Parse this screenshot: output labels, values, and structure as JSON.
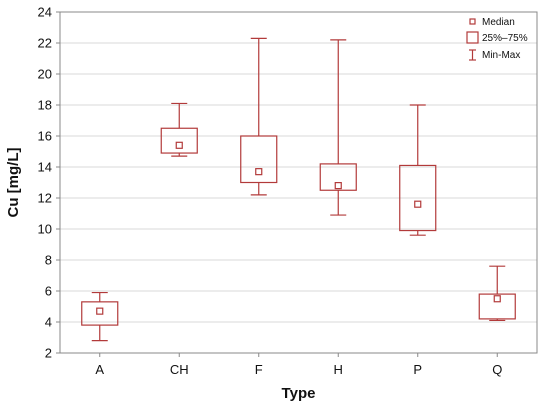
{
  "chart_data": {
    "type": "boxplot",
    "xlabel": "Type",
    "ylabel": "Cu [mg/L]",
    "ylim": [
      2,
      24
    ],
    "yticks": [
      2,
      4,
      6,
      8,
      10,
      12,
      14,
      16,
      18,
      20,
      22,
      24
    ],
    "grid": true,
    "legend_position": "top-right",
    "legend": {
      "median": "Median",
      "box": "25%–75%",
      "whisker": "Min-Max"
    },
    "colors": {
      "box": "#b23a3a",
      "grid": "#d9d9d9",
      "axis": "#888888"
    },
    "categories": [
      "A",
      "CH",
      "F",
      "H",
      "P",
      "Q"
    ],
    "boxes": [
      {
        "category": "A",
        "min": 2.8,
        "q1": 3.8,
        "median": 4.7,
        "q3": 5.3,
        "max": 5.9
      },
      {
        "category": "CH",
        "min": 14.7,
        "q1": 14.9,
        "median": 15.4,
        "q3": 16.5,
        "max": 18.1
      },
      {
        "category": "F",
        "min": 12.2,
        "q1": 13.0,
        "median": 13.7,
        "q3": 16.0,
        "max": 22.3
      },
      {
        "category": "H",
        "min": 10.9,
        "q1": 12.5,
        "median": 12.8,
        "q3": 14.2,
        "max": 22.2
      },
      {
        "category": "P",
        "min": 9.6,
        "q1": 9.9,
        "median": 11.6,
        "q3": 14.1,
        "max": 18.0
      },
      {
        "category": "Q",
        "min": 4.1,
        "q1": 4.2,
        "median": 5.5,
        "q3": 5.8,
        "max": 7.6
      }
    ]
  }
}
